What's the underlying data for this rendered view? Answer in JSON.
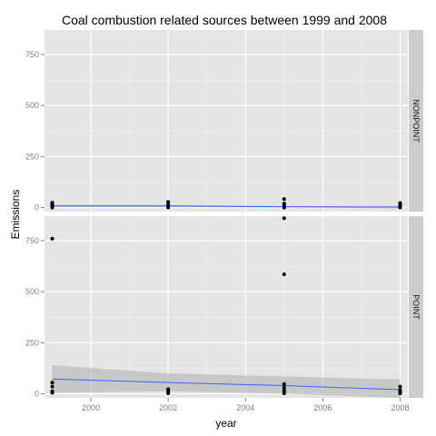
{
  "chart_data": {
    "type": "scatter",
    "title": "Coal combustion related sources between 1999 and 2008",
    "xlabel": "year",
    "ylabel": "Emissions",
    "xlim": [
      1998.8,
      2008.2
    ],
    "ylim": [
      -20,
      870
    ],
    "x_ticks": [
      2000,
      2002,
      2004,
      2006,
      2008
    ],
    "y_ticks": [
      0,
      250,
      500,
      750
    ],
    "grid": true,
    "colors": {
      "panel_bg": "#e5e5e5",
      "grid_major": "#ffffff",
      "strip_bg": "#cccccc",
      "point": "#000000",
      "smooth_line": "#3366ff",
      "confidence_band": "#b3b3b3"
    },
    "panels": [
      {
        "label": "NONPOINT",
        "points": [
          {
            "x": 1999,
            "y": 0
          },
          {
            "x": 1999,
            "y": 5
          },
          {
            "x": 1999,
            "y": 10
          },
          {
            "x": 1999,
            "y": 18
          },
          {
            "x": 1999,
            "y": 24
          },
          {
            "x": 2002,
            "y": 0
          },
          {
            "x": 2002,
            "y": 6
          },
          {
            "x": 2002,
            "y": 18
          },
          {
            "x": 2002,
            "y": 28
          },
          {
            "x": 2005,
            "y": 0
          },
          {
            "x": 2005,
            "y": 4
          },
          {
            "x": 2005,
            "y": 12
          },
          {
            "x": 2005,
            "y": 20
          },
          {
            "x": 2005,
            "y": 42
          },
          {
            "x": 2008,
            "y": 0
          },
          {
            "x": 2008,
            "y": 4
          },
          {
            "x": 2008,
            "y": 10
          },
          {
            "x": 2008,
            "y": 16
          },
          {
            "x": 2008,
            "y": 22
          }
        ],
        "smooth": {
          "x": [
            1999,
            2002,
            2005,
            2008
          ],
          "y": [
            8,
            8,
            4,
            2
          ],
          "lower": [
            2,
            3,
            0,
            -4
          ],
          "upper": [
            14,
            13,
            8,
            8
          ]
        }
      },
      {
        "label": "POINT",
        "points": [
          {
            "x": 1999,
            "y": 5
          },
          {
            "x": 1999,
            "y": 12
          },
          {
            "x": 1999,
            "y": 35
          },
          {
            "x": 1999,
            "y": 55
          },
          {
            "x": 1999,
            "y": 760
          },
          {
            "x": 2002,
            "y": 2
          },
          {
            "x": 2002,
            "y": 8
          },
          {
            "x": 2002,
            "y": 15
          },
          {
            "x": 2002,
            "y": 22
          },
          {
            "x": 2005,
            "y": 2
          },
          {
            "x": 2005,
            "y": 10
          },
          {
            "x": 2005,
            "y": 18
          },
          {
            "x": 2005,
            "y": 30
          },
          {
            "x": 2005,
            "y": 48
          },
          {
            "x": 2005,
            "y": 585
          },
          {
            "x": 2005,
            "y": 860
          },
          {
            "x": 2008,
            "y": 2
          },
          {
            "x": 2008,
            "y": 8
          },
          {
            "x": 2008,
            "y": 18
          },
          {
            "x": 2008,
            "y": 35
          }
        ],
        "smooth": {
          "x": [
            1999,
            2002,
            2005,
            2008
          ],
          "y": [
            72,
            55,
            40,
            20
          ],
          "lower": [
            5,
            12,
            0,
            -20
          ],
          "upper": [
            140,
            100,
            85,
            70
          ]
        }
      }
    ]
  }
}
